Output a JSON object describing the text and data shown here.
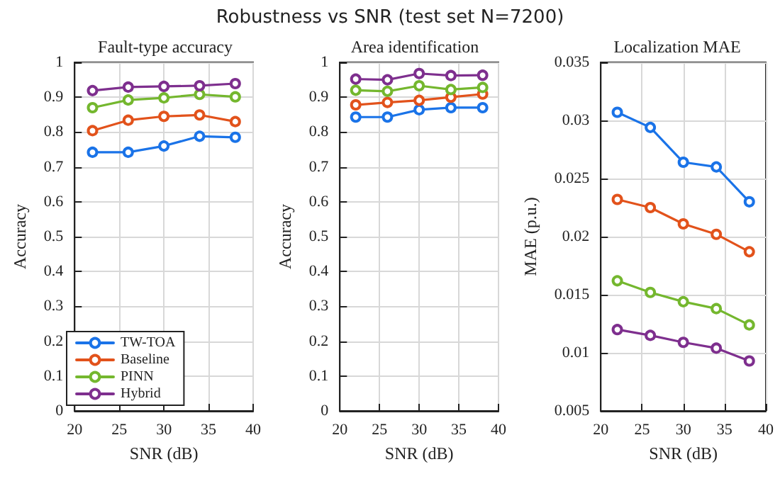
{
  "chart_data": [
    {
      "type": "other",
      "title": "Robustness vs SNR (test set N=7200)"
    },
    {
      "type": "line",
      "title": "Fault-type accuracy",
      "xlabel": "SNR (dB)",
      "ylabel": "Accuracy",
      "x": [
        22,
        26,
        30,
        34,
        38
      ],
      "xlim": [
        20,
        40
      ],
      "xticks": [
        20,
        25,
        30,
        35,
        40
      ],
      "ylim": [
        0,
        1
      ],
      "yticks": [
        0,
        0.1,
        0.2,
        0.3,
        0.4,
        0.5,
        0.6,
        0.7,
        0.8,
        0.9,
        1
      ],
      "grid": true,
      "legend": "bottom left",
      "marker": "circle",
      "series": [
        {
          "name": "TW-TOA",
          "color": "#1a73e8",
          "values": [
            0.742,
            0.742,
            0.76,
            0.788,
            0.785
          ]
        },
        {
          "name": "Baseline",
          "color": "#e2521b",
          "values": [
            0.804,
            0.834,
            0.845,
            0.849,
            0.83
          ]
        },
        {
          "name": "PINN",
          "color": "#74b72e",
          "values": [
            0.87,
            0.892,
            0.898,
            0.908,
            0.901
          ]
        },
        {
          "name": "Hybrid",
          "color": "#7e2f8e",
          "values": [
            0.919,
            0.929,
            0.931,
            0.933,
            0.939
          ]
        }
      ]
    },
    {
      "type": "line",
      "title": "Area identification",
      "xlabel": "SNR (dB)",
      "ylabel": "Accuracy",
      "x": [
        22,
        26,
        30,
        34,
        38
      ],
      "xlim": [
        20,
        40
      ],
      "xticks": [
        20,
        25,
        30,
        35,
        40
      ],
      "ylim": [
        0,
        1
      ],
      "yticks": [
        0,
        0.1,
        0.2,
        0.3,
        0.4,
        0.5,
        0.6,
        0.7,
        0.8,
        0.9,
        1
      ],
      "grid": true,
      "marker": "circle",
      "series": [
        {
          "color": "#1a73e8",
          "values": [
            0.843,
            0.843,
            0.864,
            0.87,
            0.87
          ]
        },
        {
          "color": "#e2521b",
          "values": [
            0.878,
            0.885,
            0.891,
            0.9,
            0.909
          ]
        },
        {
          "color": "#74b72e",
          "values": [
            0.92,
            0.917,
            0.933,
            0.922,
            0.928
          ]
        },
        {
          "color": "#7e2f8e",
          "values": [
            0.952,
            0.95,
            0.968,
            0.962,
            0.963
          ]
        }
      ]
    },
    {
      "type": "line",
      "title": "Localization MAE",
      "xlabel": "SNR (dB)",
      "ylabel": "MAE (p.u.)",
      "x": [
        22,
        26,
        30,
        34,
        38
      ],
      "xlim": [
        20,
        40
      ],
      "xticks": [
        20,
        25,
        30,
        35,
        40
      ],
      "ylim": [
        0.005,
        0.035
      ],
      "yticks": [
        0.005,
        0.01,
        0.015,
        0.02,
        0.025,
        0.03,
        0.035
      ],
      "grid": true,
      "marker": "circle",
      "series": [
        {
          "color": "#1a73e8",
          "values": [
            0.0307,
            0.0294,
            0.0264,
            0.026,
            0.023
          ]
        },
        {
          "color": "#e2521b",
          "values": [
            0.0232,
            0.0225,
            0.0211,
            0.0202,
            0.0187
          ]
        },
        {
          "color": "#74b72e",
          "values": [
            0.0162,
            0.0152,
            0.0144,
            0.0138,
            0.0124
          ]
        },
        {
          "color": "#7e2f8e",
          "values": [
            0.012,
            0.0115,
            0.0109,
            0.0104,
            0.0093
          ]
        }
      ]
    }
  ]
}
